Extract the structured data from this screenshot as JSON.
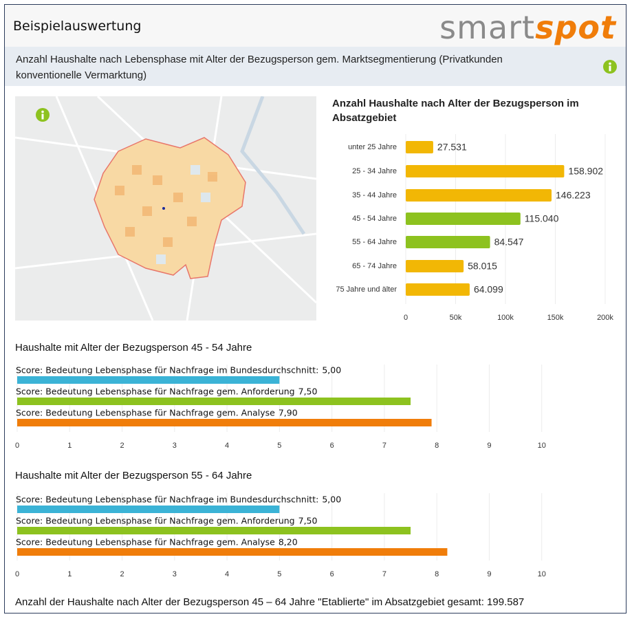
{
  "header": {
    "title": "Beispielauswertung",
    "logo": [
      "smart",
      "spot"
    ]
  },
  "section": {
    "title": "Anzahl Haushalte nach Lebensphase mit Alter der Bezugsperson gem. Marktsegmentierung (Privatkunden konventionelle Vermarktung)"
  },
  "chart_data": [
    {
      "type": "bar",
      "title": "Anzahl Haushalte nach Alter der Bezugsperson im Absatzgebiet",
      "categories": [
        "unter 25 Jahre",
        "25 - 34 Jahre",
        "35 - 44 Jahre",
        "45 - 54 Jahre",
        "55 - 64 Jahre",
        "65 - 74 Jahre",
        "75 Jahre und älter"
      ],
      "values": [
        27531,
        158902,
        146223,
        115040,
        84547,
        58015,
        64099
      ],
      "value_labels": [
        "27.531",
        "158.902",
        "146.223",
        "115.040",
        "84.547",
        "58.015",
        "64.099"
      ],
      "colors": [
        "#f2b705",
        "#f2b705",
        "#f2b705",
        "#8dc21f",
        "#8dc21f",
        "#f2b705",
        "#f2b705"
      ],
      "xlim": [
        0,
        200000
      ],
      "xticks": [
        0,
        {
          "value": 50000,
          "label": "50k"
        },
        {
          "value": 100000,
          "label": "100k"
        },
        {
          "value": 150000,
          "label": "150k"
        },
        {
          "value": 200000,
          "label": "200k"
        }
      ],
      "grid": true
    },
    {
      "type": "bar",
      "title": "Haushalte mit Alter der Bezugsperson 45 - 54 Jahre",
      "categories": [
        "Score: Bedeutung Lebensphase für Nachfrage im Bundesdurchschnitt:",
        "Score: Bedeutung Lebensphase für Nachfrage gem. Anforderung",
        "Score: Bedeutung Lebensphase für Nachfrage gem. Analyse"
      ],
      "values": [
        5,
        7.5,
        7.9
      ],
      "value_labels": [
        "5,00",
        "7,50",
        "7,90"
      ],
      "colors": [
        "#3bb3d6",
        "#8dc21f",
        "#f07d0a"
      ],
      "xlim": [
        0,
        11
      ],
      "xticks": [
        0,
        1,
        2,
        3,
        4,
        5,
        6,
        7,
        8,
        9,
        10
      ],
      "grid": true
    },
    {
      "type": "bar",
      "title": "Haushalte mit Alter der Bezugsperson 55 - 64 Jahre",
      "categories": [
        "Score: Bedeutung Lebensphase für Nachfrage im Bundesdurchschnitt:",
        "Score: Bedeutung Lebensphase für Nachfrage gem. Anforderung",
        "Score: Bedeutung Lebensphase für Nachfrage gem. Analyse"
      ],
      "values": [
        5,
        7.5,
        8.2
      ],
      "value_labels": [
        "5,00",
        "7,50",
        "8,20"
      ],
      "colors": [
        "#3bb3d6",
        "#8dc21f",
        "#f07d0a"
      ],
      "xlim": [
        0,
        11
      ],
      "xticks": [
        0,
        1,
        2,
        3,
        4,
        5,
        6,
        7,
        8,
        9,
        10
      ],
      "grid": true
    }
  ],
  "footer": {
    "text": "Anzahl der Haushalte nach Alter der Bezugsperson 45 – 64 Jahre \"Etablierte\" im Absatzgebiet gesamt: 199.587"
  }
}
